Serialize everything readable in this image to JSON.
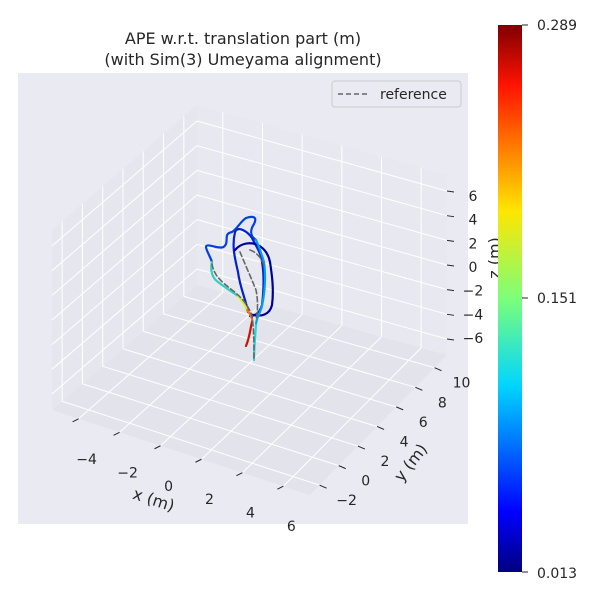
{
  "chart_data": {
    "type": "line",
    "projection": "3d",
    "title_line1": "APE w.r.t. translation part (m)",
    "title_line2": "(with Sim(3) Umeyama alignment)",
    "xlabel": "x (m)",
    "ylabel": "y (m)",
    "zlabel": "z (m)",
    "x_ticks": [
      -4,
      -2,
      0,
      2,
      4,
      6
    ],
    "y_ticks": [
      -2,
      0,
      2,
      4,
      6,
      8,
      10
    ],
    "z_ticks": [
      -6,
      -4,
      -2,
      0,
      2,
      4,
      6
    ],
    "xlim": [
      -5.3,
      7.3
    ],
    "ylim": [
      -3,
      11.3
    ],
    "zlim": [
      -7.3,
      7.3
    ],
    "grid": true,
    "legend": {
      "placement": "top-right",
      "entries": [
        "reference"
      ]
    },
    "reference_style": {
      "color": "#666666",
      "dash": "dashed"
    },
    "colorbar": {
      "colormap": "jet",
      "min": 0.013,
      "max": 0.289,
      "ticks": [
        "0.289",
        "0.151",
        "0.013"
      ]
    },
    "background": "#eaeaf2"
  }
}
